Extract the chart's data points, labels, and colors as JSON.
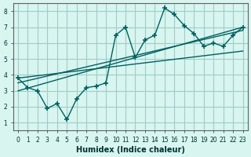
{
  "xlabel": "Humidex (Indice chaleur)",
  "background_color": "#d8f5f0",
  "grid_color": "#a0ccc8",
  "line_color": "#006060",
  "xlim": [
    -0.5,
    23.5
  ],
  "ylim": [
    0.5,
    8.5
  ],
  "xticks": [
    0,
    1,
    2,
    3,
    4,
    5,
    6,
    7,
    8,
    9,
    10,
    11,
    12,
    13,
    14,
    15,
    16,
    17,
    18,
    19,
    20,
    21,
    22,
    23
  ],
  "yticks": [
    1,
    2,
    3,
    4,
    5,
    6,
    7,
    8
  ],
  "series1_x": [
    0,
    1,
    2,
    3,
    4,
    5,
    6,
    7,
    8,
    9,
    10,
    11,
    12,
    13,
    14,
    15,
    16,
    17,
    18,
    19,
    20,
    21,
    22,
    23
  ],
  "series1_y": [
    3.8,
    3.2,
    3.0,
    1.9,
    2.2,
    1.2,
    2.5,
    3.2,
    3.3,
    3.5,
    6.5,
    7.0,
    5.1,
    6.2,
    6.5,
    8.2,
    7.8,
    7.1,
    6.6,
    5.8,
    6.0,
    5.8,
    6.5,
    7.0
  ],
  "series2_x": [
    0,
    23
  ],
  "series2_y": [
    3.0,
    7.0
  ],
  "series3_x": [
    0,
    23
  ],
  "series3_y": [
    3.5,
    6.8
  ],
  "series4_x": [
    0,
    23
  ],
  "series4_y": [
    3.8,
    5.5
  ]
}
